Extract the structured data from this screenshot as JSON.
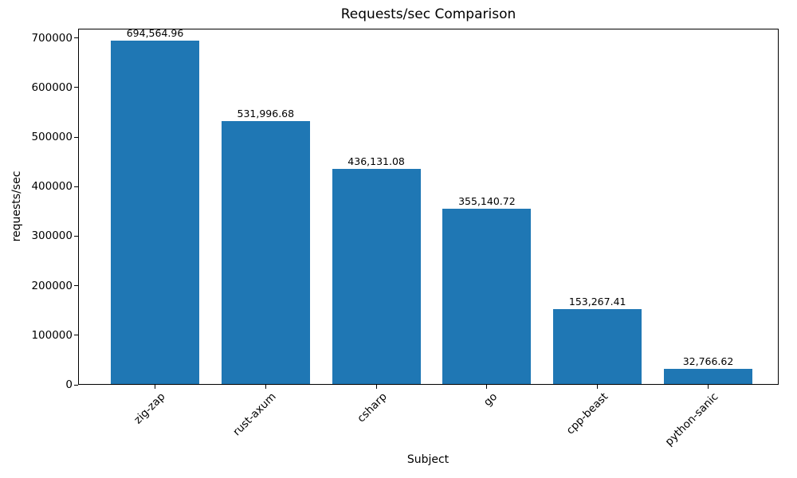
{
  "chart_data": {
    "type": "bar",
    "title": "Requests/sec Comparison",
    "xlabel": "Subject",
    "ylabel": "requests/sec",
    "categories": [
      "zig-zap",
      "rust-axum",
      "csharp",
      "go",
      "cpp-beast",
      "python-sanic"
    ],
    "values": [
      694564.96,
      531996.68,
      436131.08,
      355140.72,
      153267.41,
      32766.62
    ],
    "value_labels": [
      "694,564.96",
      "531,996.68",
      "436,131.08",
      "355,140.72",
      "153,267.41",
      "32,766.62"
    ],
    "yticks": [
      0,
      100000,
      200000,
      300000,
      400000,
      500000,
      600000,
      700000
    ],
    "ytick_labels": [
      "0",
      "100000",
      "200000",
      "300000",
      "400000",
      "500000",
      "600000",
      "700000"
    ],
    "ylim": [
      0,
      718650
    ],
    "xtick_rotation": 45,
    "grid": false,
    "legend": null,
    "bar_color": "#1f77b4",
    "text_color": "#000000",
    "background_color": "#ffffff"
  }
}
